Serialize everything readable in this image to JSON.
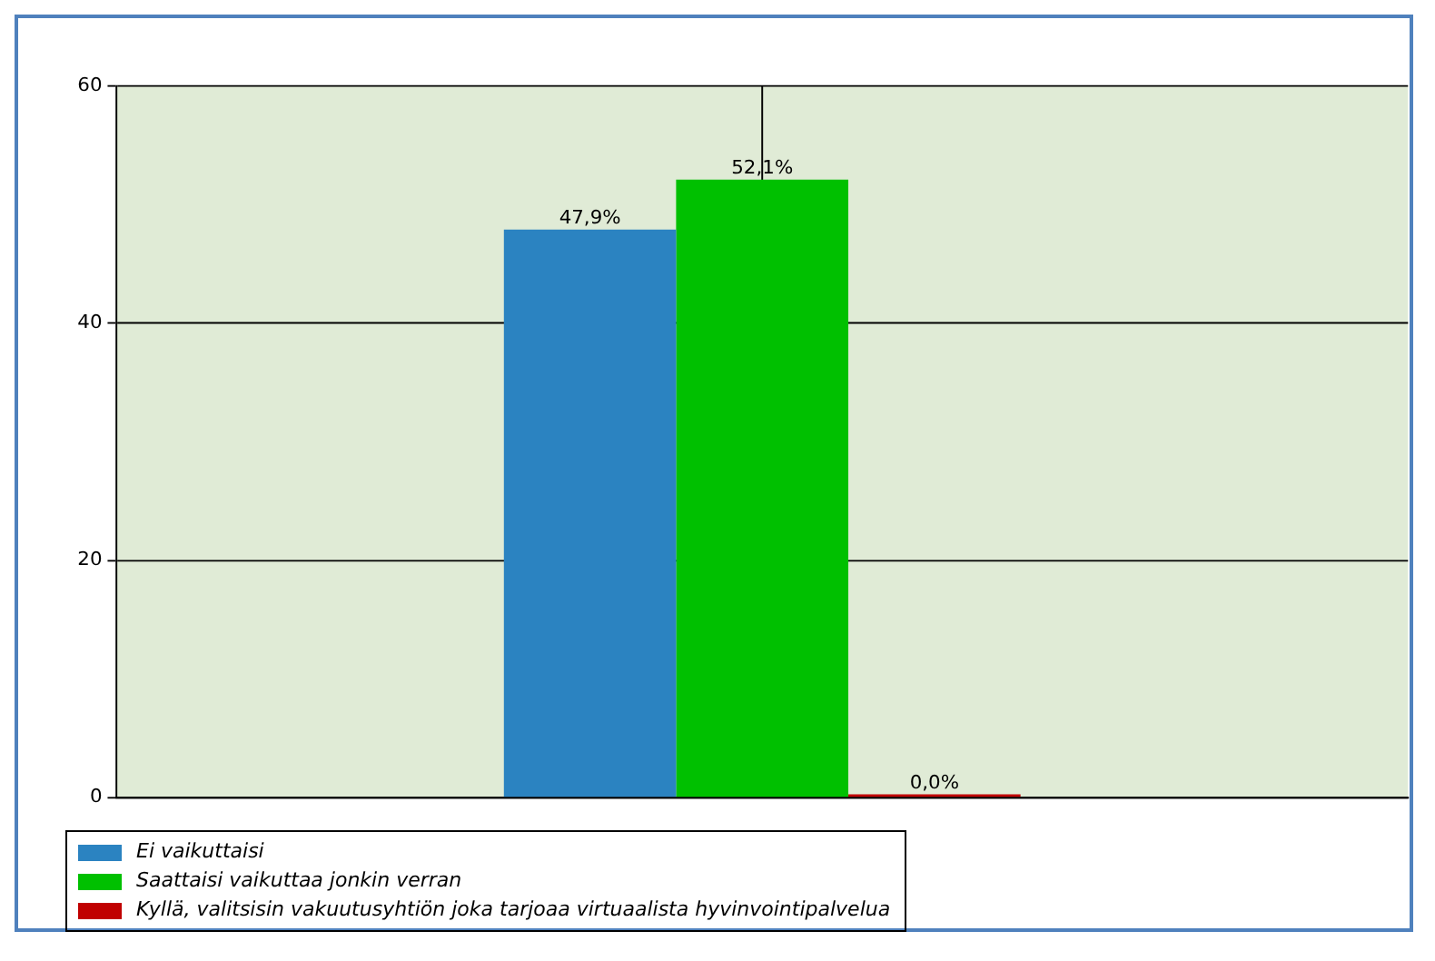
{
  "chart_data": {
    "type": "bar",
    "categories": [
      null
    ],
    "series": [
      {
        "name": "Ei vaikuttaisi",
        "color": "#2b83c1",
        "values": [
          47.9
        ],
        "value_labels": [
          "47,9%"
        ]
      },
      {
        "name": "Saattaisi vaikuttaa jonkin verran",
        "color": "#00c000",
        "values": [
          52.1
        ],
        "value_labels": [
          "52,1%"
        ]
      },
      {
        "name": "Kyllä, valitsisin vakuutusyhtiön joka tarjoaa virtuaalista hyvinvointipalvelua",
        "color": "#c00000",
        "values": [
          0.0
        ],
        "value_labels": [
          "0,0%"
        ]
      }
    ],
    "ylim": [
      0,
      60
    ],
    "yticks": [
      0,
      20,
      40,
      60
    ],
    "grid": true,
    "legend": "bottom"
  }
}
